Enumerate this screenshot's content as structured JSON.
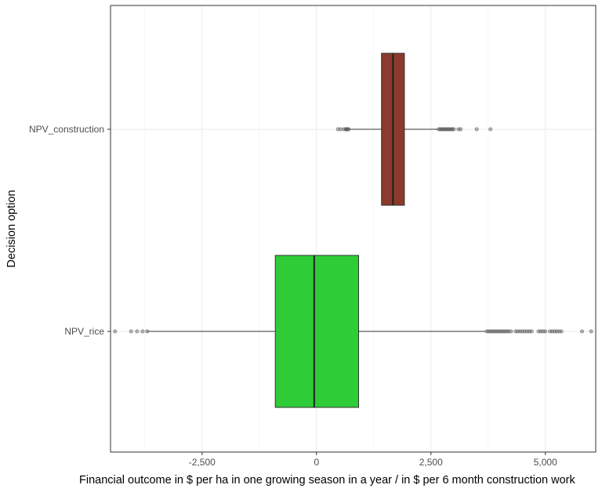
{
  "chart_data": {
    "type": "boxplot",
    "orientation": "horizontal",
    "xlabel": "Financial outcome in $ per ha in one growing season in a year / in $ per 6 month construction work",
    "ylabel": "Decision option",
    "xlim": [
      -4500,
      6100
    ],
    "x_ticks": [
      -2500,
      0,
      2500,
      5000
    ],
    "x_tick_labels": [
      "-2,500",
      "0",
      "2,500",
      "5,000"
    ],
    "grid": true,
    "categories": [
      "NPV_construction",
      "NPV_rice"
    ],
    "series": [
      {
        "name": "NPV_construction",
        "color": "#8B3A2B",
        "min": 700,
        "q1": 1420,
        "median": 1670,
        "q3": 1920,
        "max": 2650,
        "outliers": [
          470,
          530,
          600,
          640,
          660,
          680,
          700,
          2670,
          2700,
          2730,
          2760,
          2790,
          2820,
          2850,
          2880,
          2910,
          2940,
          2970,
          3000,
          3100,
          3150,
          3500,
          3800
        ]
      },
      {
        "name": "NPV_rice",
        "color": "#2ECC36",
        "min": -3700,
        "q1": -900,
        "median": -50,
        "q3": 920,
        "max": 3700,
        "outliers": [
          -4400,
          -4050,
          -3920,
          -3800,
          -3700,
          3720,
          3760,
          3800,
          3840,
          3880,
          3920,
          3960,
          4000,
          4040,
          4080,
          4120,
          4160,
          4200,
          4250,
          4350,
          4400,
          4450,
          4500,
          4550,
          4600,
          4650,
          4700,
          4850,
          4900,
          4950,
          5000,
          5100,
          5150,
          5200,
          5250,
          5300,
          5350,
          5800,
          6000
        ]
      }
    ]
  }
}
